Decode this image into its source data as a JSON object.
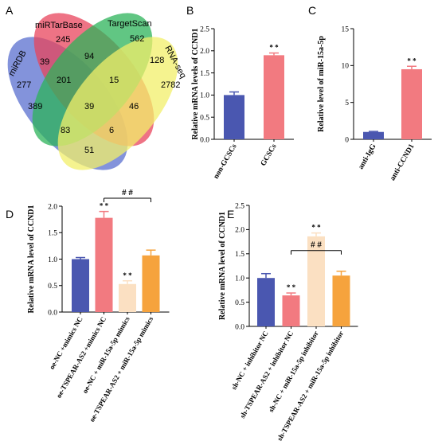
{
  "panels": {
    "A": "A",
    "B": "B",
    "C": "C",
    "D": "D",
    "E": "E"
  },
  "venn": {
    "sets": [
      {
        "name": "miRDB",
        "color": "#5a6fcf"
      },
      {
        "name": "miRTarBase",
        "color": "#e8455c"
      },
      {
        "name": "TargetScan",
        "color": "#2db35a"
      },
      {
        "name": "RNA-seq",
        "color": "#f2ef6a"
      }
    ],
    "counts": [
      "245",
      "562",
      "39",
      "94",
      "128",
      "277",
      "201",
      "15",
      "2782",
      "389",
      "39",
      "46",
      "83",
      "6",
      "51"
    ]
  },
  "chart_data": [
    {
      "type": "bar",
      "panel": "B",
      "ylabel": "Relative mRNA levels of CCND1",
      "ylim": [
        0,
        2.5
      ],
      "yticks": [
        "0.0",
        "0.5",
        "1.0",
        "1.5",
        "2.0",
        "2.5"
      ],
      "categories": [
        "non-GCSCs",
        "GCSCs"
      ],
      "values": [
        1.0,
        1.9
      ],
      "errors": [
        0.07,
        0.05
      ],
      "colors": [
        "#4a57b0",
        "#f27a80"
      ],
      "annotations": [
        "",
        "* *"
      ]
    },
    {
      "type": "bar",
      "panel": "C",
      "ylabel": "Relative level of miR-15a-5p",
      "ylim": [
        0,
        15
      ],
      "yticks": [
        "0",
        "5",
        "10",
        "15"
      ],
      "categories": [
        "anti-IgG",
        "anti-CCND1"
      ],
      "values": [
        1.0,
        9.5
      ],
      "errors": [
        0.07,
        0.4
      ],
      "colors": [
        "#4a57b0",
        "#f27a80"
      ],
      "annotations": [
        "",
        "* *"
      ]
    },
    {
      "type": "bar",
      "panel": "D",
      "ylabel": "Relative mRNA level of CCND1",
      "ylim": [
        0,
        2.0
      ],
      "yticks": [
        "0.0",
        "0.5",
        "1.0",
        "1.5",
        "2.0"
      ],
      "categories": [
        "oe-NC +mimics NC",
        "oe-TSPEAR-AS2 +mimics NC",
        "oe-NC + miR-15a-5p mimics",
        "oe-TSPEAR-AS2 + miR-15a-5p mimics"
      ],
      "values": [
        1.0,
        1.78,
        0.53,
        1.07
      ],
      "errors": [
        0.03,
        0.12,
        0.06,
        0.1
      ],
      "colors": [
        "#4a57b0",
        "#f27a80",
        "#fbe0c2",
        "#f6a33d"
      ],
      "annotations": [
        "",
        "* *",
        "* *",
        ""
      ],
      "bracket": {
        "label": "# #",
        "from": 1,
        "to": 3
      }
    },
    {
      "type": "bar",
      "panel": "E",
      "ylabel": "Relative mRNA level of CCND1",
      "ylim": [
        0,
        2.5
      ],
      "yticks": [
        "0.0",
        "0.5",
        "1.0",
        "1.5",
        "2.0",
        "2.5"
      ],
      "categories": [
        "sh-NC + inhibitor NC",
        "sh-TSPEAR-AS2 + inhibitor NC",
        "sh-NC + miR-15a-5p inhibitor",
        "sh-TSPEAR-AS2 + miR-15a-5p inhibitor"
      ],
      "values": [
        1.0,
        0.64,
        1.86,
        1.05
      ],
      "errors": [
        0.09,
        0.05,
        0.07,
        0.09
      ],
      "colors": [
        "#4a57b0",
        "#f27a80",
        "#fbe0c2",
        "#f6a33d"
      ],
      "annotations": [
        "",
        "* *",
        "* *",
        ""
      ],
      "bracket": {
        "label": "# #",
        "from": 1,
        "to": 3
      }
    }
  ]
}
